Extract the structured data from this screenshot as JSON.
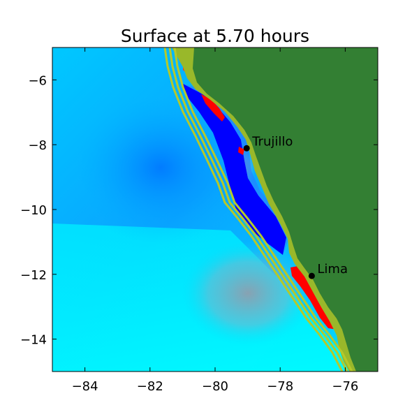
{
  "chart_data": {
    "type": "heatmap",
    "title": "Surface at 5.70 hours",
    "xlabel": "",
    "ylabel": "",
    "xlim": [
      -85,
      -75
    ],
    "ylim": [
      -15,
      -5
    ],
    "x_ticks": [
      -84,
      -82,
      -80,
      -78,
      -76
    ],
    "y_ticks": [
      -6,
      -8,
      -10,
      -12,
      -14
    ],
    "x_tick_labels": [
      "−84",
      "−82",
      "−80",
      "−78",
      "−76"
    ],
    "y_tick_labels": [
      "−6",
      "−8",
      "−10",
      "−12",
      "−14"
    ],
    "grid": false,
    "cities": [
      {
        "name": "Trujillo",
        "lon": -79.03,
        "lat": -8.11
      },
      {
        "name": "Lima",
        "lon": -77.03,
        "lat": -12.05
      }
    ],
    "colors": {
      "land": "#337f33",
      "coast_fringe": "#99b82a",
      "contour": "#b5c92a",
      "ocean_light": "#00f5ff",
      "ocean_mid": "#00c8ff",
      "ocean_deep": "#0090ff",
      "trough": "#0000ff",
      "crest": "#ff0000",
      "neutral": "#8f9eae"
    }
  }
}
